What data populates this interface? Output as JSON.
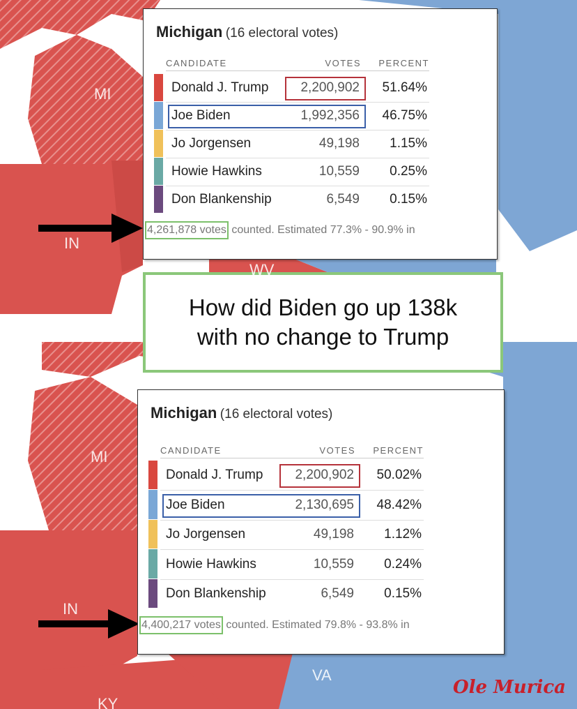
{
  "panels": [
    {
      "map_labels": [
        "MI",
        "IN",
        "WV"
      ],
      "results": {
        "title": "Michigan",
        "subtitle": "(16 electoral votes)",
        "columns": [
          "CANDIDATE",
          "VOTES",
          "PERCENT"
        ],
        "rows": [
          [
            "Donald J. Trump",
            "2,200,902",
            "51.64%"
          ],
          [
            "Joe Biden",
            "1,992,356",
            "46.75%"
          ],
          [
            "Jo Jorgensen",
            "49,198",
            "1.15%"
          ],
          [
            "Howie Hawkins",
            "10,559",
            "0.25%"
          ],
          [
            "Don Blankenship",
            "6,549",
            "0.15%"
          ]
        ],
        "votes_counted": "4,261,878 votes",
        "footer": "counted. Estimated 77.3% - 90.9% in"
      }
    },
    {
      "map_labels": [
        "MI",
        "IN",
        "VA",
        "KY"
      ],
      "results": {
        "title": "Michigan",
        "subtitle": "(16 electoral votes)",
        "columns": [
          "CANDIDATE",
          "VOTES",
          "PERCENT"
        ],
        "rows": [
          [
            "Donald J. Trump",
            "2,200,902",
            "50.02%"
          ],
          [
            "Joe Biden",
            "2,130,695",
            "48.42%"
          ],
          [
            "Jo Jorgensen",
            "49,198",
            "1.12%"
          ],
          [
            "Howie Hawkins",
            "10,559",
            "0.24%"
          ],
          [
            "Don Blankenship",
            "6,549",
            "0.15%"
          ]
        ],
        "votes_counted": "4,400,217 votes",
        "footer": "counted. Estimated 79.8% - 93.8% in"
      }
    }
  ],
  "caption": [
    "How did Biden go up 138k",
    "with no change to Trump"
  ],
  "watermark": "Ole Murica"
}
